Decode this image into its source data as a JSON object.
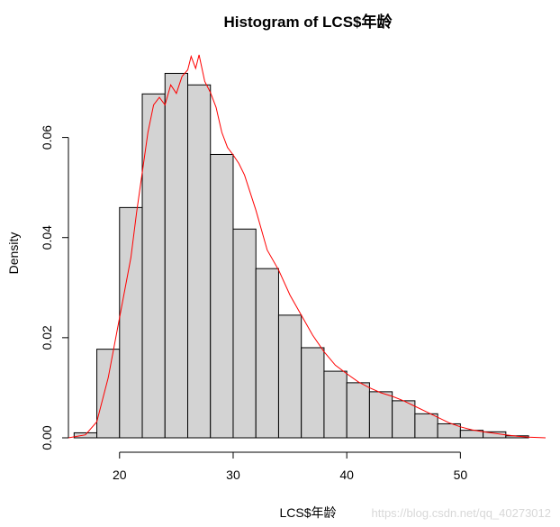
{
  "chart_data": {
    "type": "bar",
    "title": "Histogram of LCS$年龄",
    "xlabel": "LCS$年龄",
    "ylabel": "Density",
    "bin_width": 2,
    "bins": [
      {
        "start": 16,
        "end": 18,
        "density": 0.001
      },
      {
        "start": 18,
        "end": 20,
        "density": 0.0177
      },
      {
        "start": 20,
        "end": 22,
        "density": 0.046
      },
      {
        "start": 22,
        "end": 24,
        "density": 0.0687
      },
      {
        "start": 24,
        "end": 26,
        "density": 0.0728
      },
      {
        "start": 26,
        "end": 28,
        "density": 0.0705
      },
      {
        "start": 28,
        "end": 30,
        "density": 0.0566
      },
      {
        "start": 30,
        "end": 32,
        "density": 0.0417
      },
      {
        "start": 32,
        "end": 34,
        "density": 0.0338
      },
      {
        "start": 34,
        "end": 36,
        "density": 0.0245
      },
      {
        "start": 36,
        "end": 38,
        "density": 0.018
      },
      {
        "start": 38,
        "end": 40,
        "density": 0.0133
      },
      {
        "start": 40,
        "end": 42,
        "density": 0.011
      },
      {
        "start": 42,
        "end": 44,
        "density": 0.0092
      },
      {
        "start": 44,
        "end": 46,
        "density": 0.0074
      },
      {
        "start": 46,
        "end": 48,
        "density": 0.0048
      },
      {
        "start": 48,
        "end": 50,
        "density": 0.0028
      },
      {
        "start": 50,
        "end": 52,
        "density": 0.0015
      },
      {
        "start": 52,
        "end": 54,
        "density": 0.0012
      },
      {
        "start": 54,
        "end": 56,
        "density": 0.0004
      }
    ],
    "density_curve": {
      "color": "#ff0000",
      "points": [
        [
          15.5,
          0.0
        ],
        [
          17,
          0.0006
        ],
        [
          18,
          0.0032
        ],
        [
          19,
          0.012
        ],
        [
          20,
          0.024
        ],
        [
          21,
          0.036
        ],
        [
          21.5,
          0.045
        ],
        [
          22,
          0.053
        ],
        [
          22.5,
          0.061
        ],
        [
          23,
          0.0665
        ],
        [
          23.5,
          0.068
        ],
        [
          24,
          0.0665
        ],
        [
          24.5,
          0.0705
        ],
        [
          25,
          0.0688
        ],
        [
          25.5,
          0.0722
        ],
        [
          26,
          0.0735
        ],
        [
          26.3,
          0.0762
        ],
        [
          26.7,
          0.0738
        ],
        [
          27,
          0.0765
        ],
        [
          27.5,
          0.0712
        ],
        [
          28,
          0.069
        ],
        [
          28.5,
          0.066
        ],
        [
          29,
          0.061
        ],
        [
          29.5,
          0.058
        ],
        [
          30,
          0.0565
        ],
        [
          30.5,
          0.0548
        ],
        [
          31,
          0.0525
        ],
        [
          32,
          0.0455
        ],
        [
          33,
          0.0375
        ],
        [
          34,
          0.0335
        ],
        [
          35,
          0.0285
        ],
        [
          36,
          0.0245
        ],
        [
          37,
          0.0205
        ],
        [
          38,
          0.0172
        ],
        [
          39,
          0.0145
        ],
        [
          40,
          0.0128
        ],
        [
          41,
          0.0112
        ],
        [
          42,
          0.01
        ],
        [
          43,
          0.009
        ],
        [
          44,
          0.0083
        ],
        [
          45,
          0.0074
        ],
        [
          46,
          0.0063
        ],
        [
          47,
          0.0052
        ],
        [
          48,
          0.0041
        ],
        [
          49,
          0.003
        ],
        [
          50,
          0.0022
        ],
        [
          51,
          0.0016
        ],
        [
          52,
          0.0012
        ],
        [
          53,
          0.0009
        ],
        [
          54,
          0.0006
        ],
        [
          55,
          0.0003
        ],
        [
          56,
          0.00015
        ],
        [
          57.5,
          0.0
        ]
      ]
    },
    "xlim": [
      15.5,
      57.5
    ],
    "ylim": [
      0,
      0.0763
    ],
    "x_ticks": [
      {
        "value": 20,
        "label": "20"
      },
      {
        "value": 30,
        "label": "30"
      },
      {
        "value": 40,
        "label": "40"
      },
      {
        "value": 50,
        "label": "50"
      }
    ],
    "y_ticks": [
      {
        "value": 0.0,
        "label": "0.00"
      },
      {
        "value": 0.02,
        "label": "0.02"
      },
      {
        "value": 0.04,
        "label": "0.04"
      },
      {
        "value": 0.06,
        "label": "0.06"
      }
    ],
    "bar_fill": "#d3d3d3",
    "bar_stroke": "#000000",
    "grid": false,
    "legend": "none"
  },
  "watermark": "https://blog.csdn.net/qq_40273012"
}
